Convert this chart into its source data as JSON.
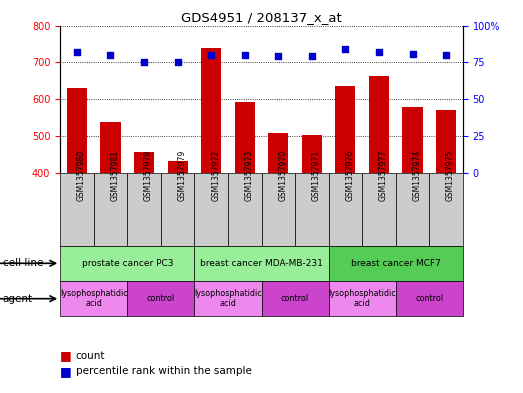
{
  "title": "GDS4951 / 208137_x_at",
  "samples": [
    "GSM1357980",
    "GSM1357981",
    "GSM1357978",
    "GSM1357979",
    "GSM1357972",
    "GSM1357973",
    "GSM1357970",
    "GSM1357971",
    "GSM1357976",
    "GSM1357977",
    "GSM1357974",
    "GSM1357975"
  ],
  "counts": [
    630,
    537,
    457,
    432,
    738,
    592,
    507,
    504,
    635,
    663,
    578,
    570
  ],
  "percentiles": [
    82,
    80,
    75,
    75,
    80,
    80,
    79,
    79,
    84,
    82,
    81,
    80
  ],
  "ylim_left": [
    400,
    800
  ],
  "ylim_right": [
    0,
    100
  ],
  "yticks_left": [
    400,
    500,
    600,
    700,
    800
  ],
  "yticks_right": [
    0,
    25,
    50,
    75,
    100
  ],
  "bar_color": "#cc0000",
  "dot_color": "#0000cc",
  "sample_bg_color": "#cccccc",
  "cell_lines": [
    {
      "label": "prostate cancer PC3",
      "start": 0,
      "end": 4,
      "color": "#99ee99"
    },
    {
      "label": "breast cancer MDA-MB-231",
      "start": 4,
      "end": 8,
      "color": "#99ee99"
    },
    {
      "label": "breast cancer MCF7",
      "start": 8,
      "end": 12,
      "color": "#55cc55"
    }
  ],
  "agents": [
    {
      "label": "lysophosphatidic\nacid",
      "start": 0,
      "end": 2,
      "color": "#ee88ee"
    },
    {
      "label": "control",
      "start": 2,
      "end": 4,
      "color": "#cc44cc"
    },
    {
      "label": "lysophosphatidic\nacid",
      "start": 4,
      "end": 6,
      "color": "#ee88ee"
    },
    {
      "label": "control",
      "start": 6,
      "end": 8,
      "color": "#cc44cc"
    },
    {
      "label": "lysophosphatidic\nacid",
      "start": 8,
      "end": 10,
      "color": "#ee88ee"
    },
    {
      "label": "control",
      "start": 10,
      "end": 12,
      "color": "#cc44cc"
    }
  ]
}
